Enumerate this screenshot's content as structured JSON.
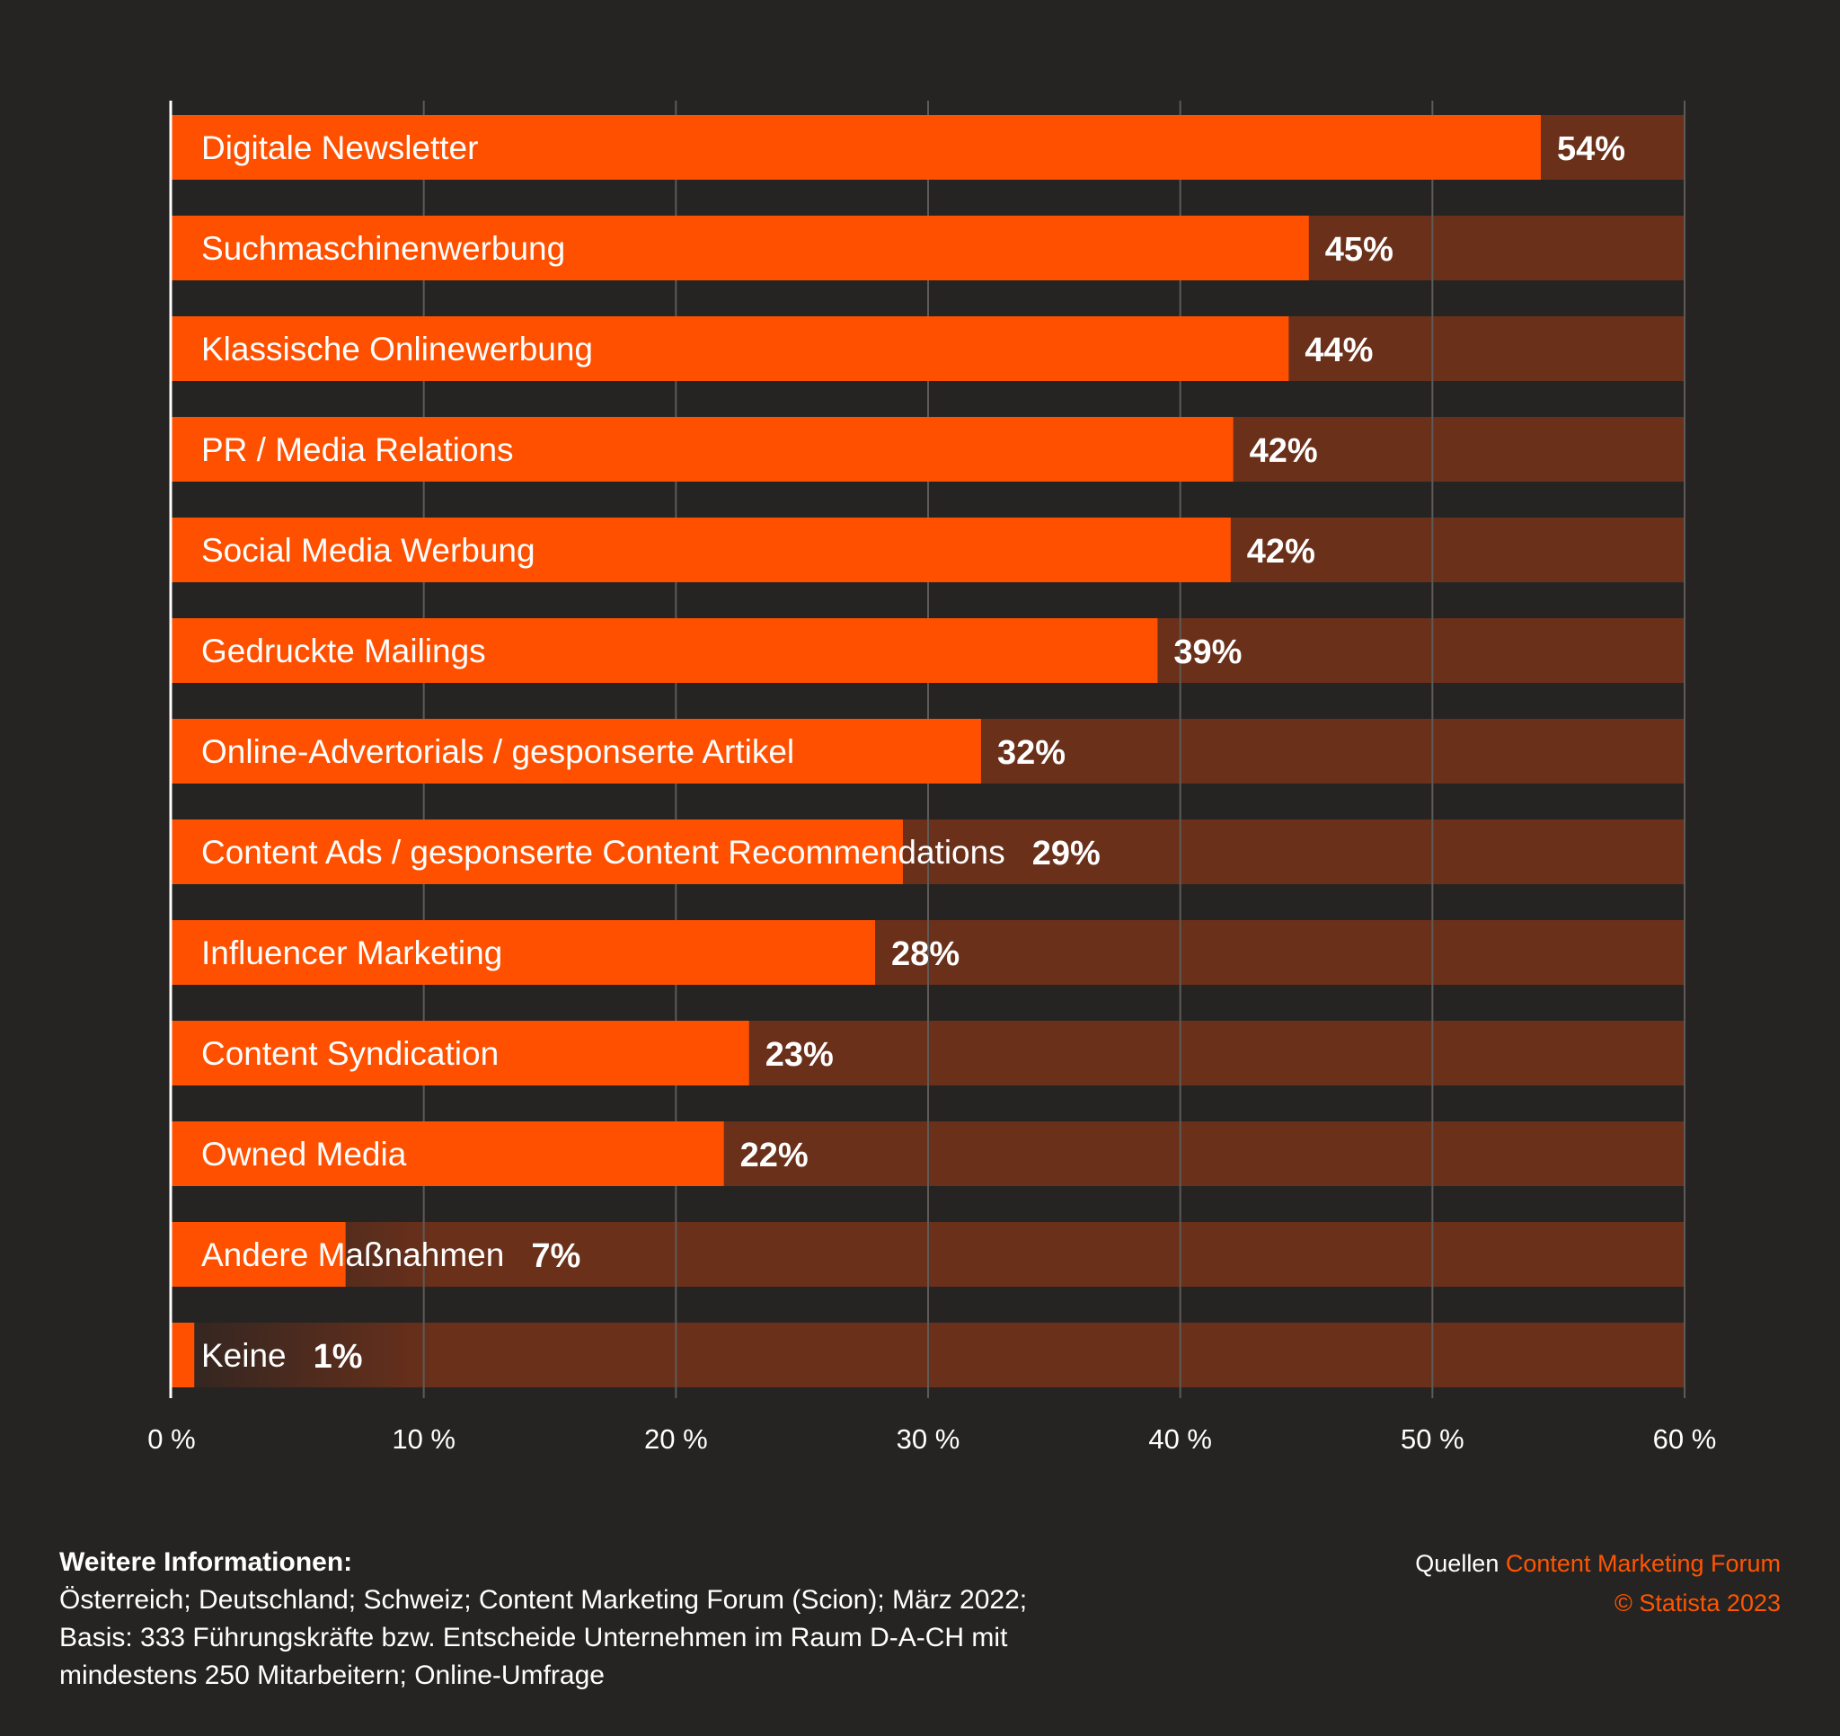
{
  "colors": {
    "background": "#252423",
    "bar": "#ff5000",
    "track": "#6b301a",
    "grid": "#5d5a57",
    "accent_text": "#ff5500"
  },
  "chart_data": {
    "type": "bar",
    "orientation": "horizontal",
    "categories": [
      "Digitale Newsletter",
      "Suchmaschinenwerbung",
      "Klassische Onlinewerbung",
      "PR / Media Relations",
      "Social Media Werbung",
      "Gedruckte Mailings",
      "Online-Advertorials / gesponserte Artikel",
      "Content Ads / gesponserte Content Recommendations",
      "Influencer Marketing",
      "Content Syndication",
      "Owned Media",
      "Andere Maßnahmen",
      "Keine"
    ],
    "values": [
      54.3,
      45.1,
      44.3,
      42.1,
      42.0,
      39.1,
      32.1,
      29.0,
      27.9,
      22.9,
      21.9,
      6.9,
      0.9
    ],
    "value_labels": [
      "54%",
      "45%",
      "44%",
      "42%",
      "42%",
      "39%",
      "32%",
      "29%",
      "28%",
      "23%",
      "22%",
      "7%",
      "1%"
    ],
    "xlim": [
      0,
      60
    ],
    "x_ticks": [
      0,
      10,
      20,
      30,
      40,
      50,
      60
    ],
    "x_tick_labels": [
      "0 %",
      "10 %",
      "20 %",
      "30 %",
      "40 %",
      "50 %",
      "60 %"
    ],
    "grid": true,
    "title": "",
    "xlabel": "",
    "ylabel": ""
  },
  "footer": {
    "info_heading": "Weitere Informationen:",
    "info_lines": [
      "Österreich; Deutschland; Schweiz; Content Marketing Forum (Scion); März 2022;",
      "Basis: 333 Führungskräfte bzw. Entscheide Unternehmen im Raum D-A-CH mit",
      "mindestens 250 Mitarbeitern; Online-Umfrage"
    ],
    "source_prefix": "Quellen",
    "source_name": "Content Marketing Forum",
    "copyright": "© Statista 2023"
  }
}
